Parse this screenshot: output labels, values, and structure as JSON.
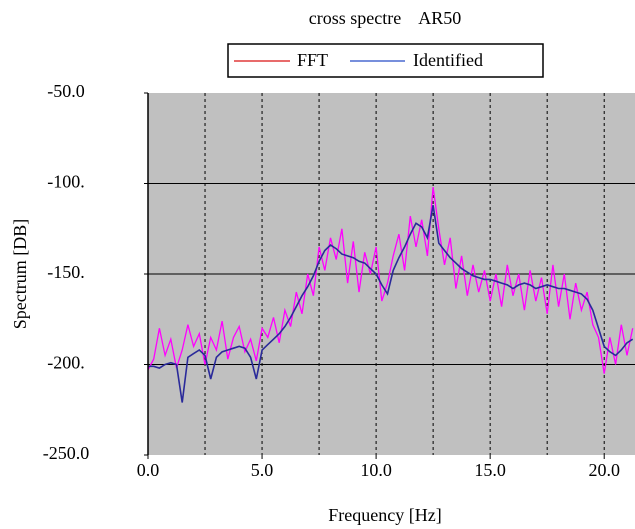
{
  "chart_data": {
    "type": "line",
    "title": "cross spectre    AR50",
    "x_label": "Frequency [Hz]",
    "y_label": "Spectrum [DB]",
    "xlim": [
      0,
      21.35
    ],
    "ylim": [
      -250,
      -50
    ],
    "xticks": [
      {
        "value": 0,
        "label": "0.0"
      },
      {
        "value": 5,
        "label": "5.0"
      },
      {
        "value": 10,
        "label": "10.0"
      },
      {
        "value": 15,
        "label": "15.0"
      },
      {
        "value": 20,
        "label": "20.0"
      }
    ],
    "x_grid": [
      2.5,
      5,
      7.5,
      10,
      12.5,
      15,
      17.5,
      20
    ],
    "yticks": [
      {
        "value": -50,
        "label": "-50.0"
      },
      {
        "value": -100,
        "label": "-100."
      },
      {
        "value": -150,
        "label": "-150."
      },
      {
        "value": -200,
        "label": "-200."
      },
      {
        "value": -250,
        "label": "-250.0"
      }
    ],
    "grid": true,
    "plot_background": "#c0c0c0",
    "x": [
      0,
      0.25,
      0.5,
      0.75,
      1,
      1.25,
      1.5,
      1.75,
      2,
      2.25,
      2.5,
      2.75,
      3,
      3.25,
      3.5,
      3.75,
      4,
      4.25,
      4.5,
      4.75,
      5,
      5.25,
      5.5,
      5.75,
      6,
      6.25,
      6.5,
      6.75,
      7,
      7.25,
      7.5,
      7.75,
      8,
      8.25,
      8.5,
      8.75,
      9,
      9.25,
      9.5,
      9.75,
      10,
      10.25,
      10.5,
      10.75,
      11,
      11.25,
      11.5,
      11.75,
      12,
      12.25,
      12.5,
      12.75,
      13,
      13.25,
      13.5,
      13.75,
      14,
      14.25,
      14.5,
      14.75,
      15,
      15.25,
      15.5,
      15.75,
      16,
      16.25,
      16.5,
      16.75,
      17,
      17.25,
      17.5,
      17.75,
      18,
      18.25,
      18.5,
      18.75,
      19,
      19.25,
      19.5,
      19.75,
      20,
      20.25,
      20.5,
      20.75,
      21,
      21.25
    ],
    "series": [
      {
        "name": "FFT",
        "color": "#ff00ff",
        "legend_color": "#e03a3a",
        "values": [
          -203,
          -197,
          -180,
          -195,
          -186,
          -202,
          -192,
          -178,
          -190,
          -183,
          -200,
          -185,
          -192,
          -176,
          -197,
          -185,
          -179,
          -193,
          -186,
          -198,
          -180,
          -185,
          -174,
          -188,
          -170,
          -179,
          -160,
          -172,
          -150,
          -162,
          -135,
          -148,
          -130,
          -142,
          -125,
          -155,
          -132,
          -160,
          -138,
          -150,
          -135,
          -165,
          -155,
          -140,
          -128,
          -148,
          -118,
          -135,
          -120,
          -140,
          -102,
          -125,
          -145,
          -130,
          -158,
          -140,
          -162,
          -145,
          -160,
          -148,
          -165,
          -150,
          -168,
          -145,
          -162,
          -150,
          -170,
          -148,
          -165,
          -152,
          -172,
          -145,
          -168,
          -150,
          -175,
          -155,
          -170,
          -160,
          -178,
          -185,
          -205,
          -185,
          -200,
          -178,
          -195,
          -180
        ]
      },
      {
        "name": "Identified",
        "color": "#2a2a9a",
        "legend_color": "#4a6ad0",
        "values": [
          -201,
          -201,
          -202,
          -200,
          -199,
          -200,
          -221,
          -196,
          -194,
          -192,
          -195,
          -208,
          -196,
          -193,
          -192,
          -191,
          -190,
          -191,
          -196,
          -208,
          -192,
          -189,
          -186,
          -183,
          -179,
          -174,
          -168,
          -162,
          -157,
          -151,
          -143,
          -137,
          -134,
          -136,
          -139,
          -140,
          -141,
          -143,
          -144,
          -147,
          -150,
          -156,
          -161,
          -148,
          -141,
          -135,
          -128,
          -122,
          -124,
          -130,
          -112,
          -133,
          -137,
          -141,
          -144,
          -147,
          -149,
          -151,
          -152,
          -153,
          -153,
          -154,
          -155,
          -156,
          -158,
          -156,
          -155,
          -156,
          -158,
          -157,
          -156,
          -157,
          -158,
          -158,
          -159,
          -160,
          -161,
          -164,
          -170,
          -180,
          -190,
          -193,
          -195,
          -192,
          -188,
          -186
        ]
      }
    ]
  }
}
